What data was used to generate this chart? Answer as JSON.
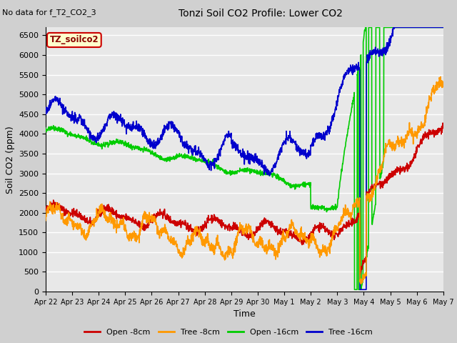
{
  "title": "Tonzi Soil CO2 Profile: Lower CO2",
  "subtitle": "No data for f_T2_CO2_3",
  "xlabel": "Time",
  "ylabel": "Soil CO2 (ppm)",
  "ylim": [
    0,
    6700
  ],
  "yticks": [
    0,
    500,
    1000,
    1500,
    2000,
    2500,
    3000,
    3500,
    4000,
    4500,
    5000,
    5500,
    6000,
    6500
  ],
  "legend_labels": [
    "Open -8cm",
    "Tree -8cm",
    "Open -16cm",
    "Tree -16cm"
  ],
  "legend_colors": [
    "#cc0000",
    "#ff9900",
    "#00cc00",
    "#0000cc"
  ],
  "inset_label": "TZ_soilco2",
  "bg_color": "#e8e8e8",
  "grid_color": "#ffffff",
  "tick_labels": [
    "Apr 22",
    "Apr 23",
    "Apr 24",
    "Apr 25",
    "Apr 26",
    "Apr 27",
    "Apr 28",
    "Apr 29",
    "Apr 30",
    "May 1",
    "May 2",
    "May 3",
    "May 4",
    "May 5",
    "May 6",
    "May 7"
  ]
}
